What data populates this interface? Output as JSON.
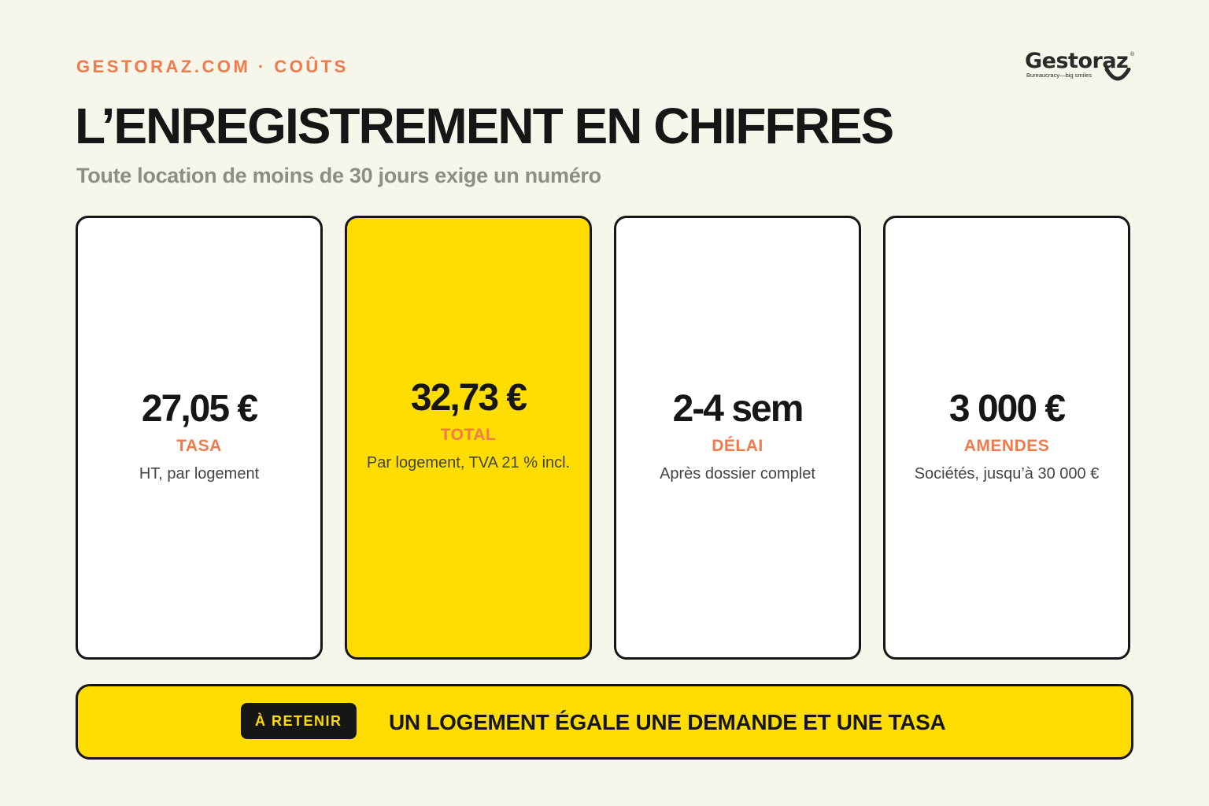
{
  "header": {
    "eyebrow": "GESTORAZ.COM · COÛTS",
    "title": "L’ENREGISTREMENT EN CHIFFRES",
    "subtitle": "Toute location de moins de 30 jours exige un numéro"
  },
  "logo": {
    "name": "Gestoraz",
    "registered": "®",
    "tagline": "Bureaucracy—big smiles"
  },
  "cards": [
    {
      "value": "27,05 €",
      "label": "TASA",
      "desc": "HT, par logement"
    },
    {
      "value": "32,73 €",
      "label": "TOTAL",
      "desc": "Par logement, TVA 21 % incl."
    },
    {
      "value": "2-4 sem",
      "label": "DÉLAI",
      "desc": "Après dossier complet"
    },
    {
      "value": "3 000 €",
      "label": "AMENDES",
      "desc": "Sociétés, jusqu’à 30 000 €"
    }
  ],
  "banner": {
    "tag": "À RETENIR",
    "text": "UN LOGEMENT ÉGALE UNE DEMANDE ET UNE TASA"
  },
  "colors": {
    "background": "#f7f6ea",
    "accent_orange": "#f07a4a",
    "highlight_yellow": "#ffdd00",
    "ink": "#161616"
  }
}
